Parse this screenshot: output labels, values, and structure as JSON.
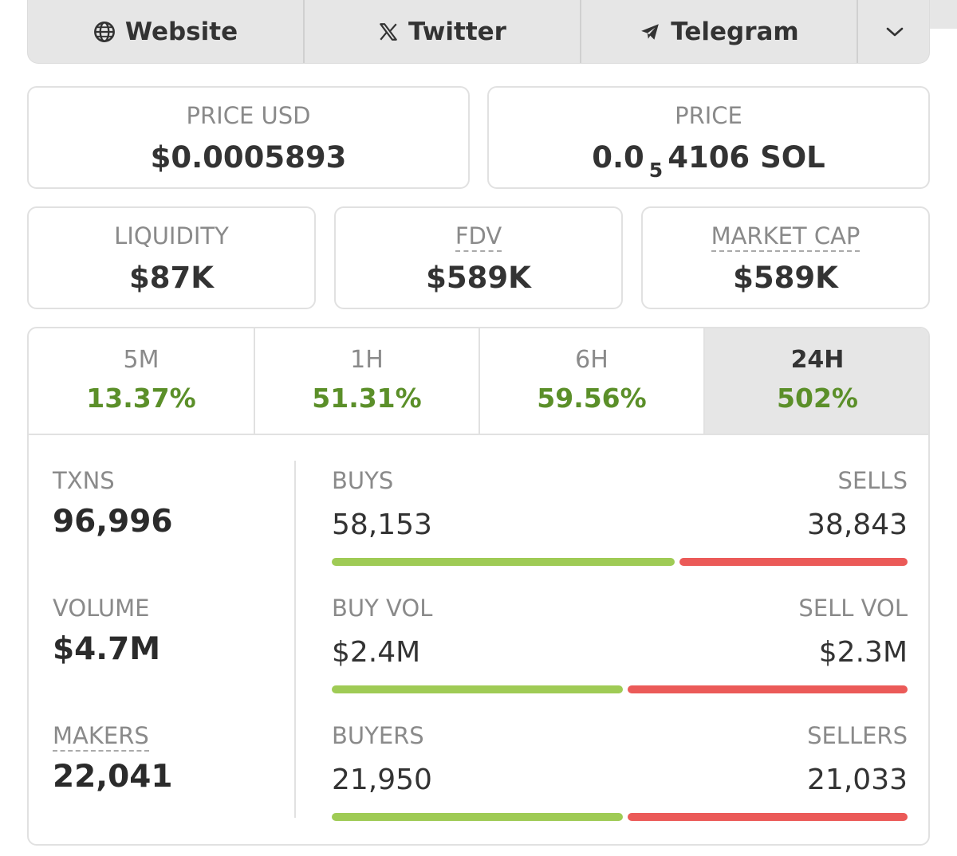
{
  "links": {
    "website": "Website",
    "twitter": "Twitter",
    "telegram": "Telegram"
  },
  "price_usd": {
    "label": "PRICE USD",
    "value": "$0.0005893"
  },
  "price_native": {
    "label": "PRICE",
    "prefix": "0.0",
    "zeros": "5",
    "suffix": "4106 SOL"
  },
  "liquidity": {
    "label": "LIQUIDITY",
    "value": "$87K"
  },
  "fdv": {
    "label": "FDV",
    "value": "$589K"
  },
  "market_cap": {
    "label": "MARKET CAP",
    "value": "$589K"
  },
  "tabs": [
    {
      "label": "5M",
      "change": "13.37%"
    },
    {
      "label": "1H",
      "change": "51.31%"
    },
    {
      "label": "6H",
      "change": "59.56%"
    },
    {
      "label": "24H",
      "change": "502%"
    }
  ],
  "active_tab": "24H",
  "metrics": {
    "txns": {
      "label": "TXNS",
      "value": "96,996"
    },
    "volume": {
      "label": "VOLUME",
      "value": "$4.7M"
    },
    "makers": {
      "label": "MAKERS",
      "value": "22,041"
    }
  },
  "pairs": {
    "txns": {
      "left_label": "BUYS",
      "left_value": "58,153",
      "right_label": "SELLS",
      "right_value": "38,843",
      "buy_fraction": 0.6
    },
    "volume": {
      "left_label": "BUY VOL",
      "left_value": "$2.4M",
      "right_label": "SELL VOL",
      "right_value": "$2.3M",
      "buy_fraction": 0.51
    },
    "makers": {
      "left_label": "BUYERS",
      "left_value": "21,950",
      "right_label": "SELLERS",
      "right_value": "21,033",
      "buy_fraction": 0.51
    }
  },
  "colors": {
    "positive": "#5b8f29",
    "buy_bar": "#9fcb55",
    "sell_bar": "#eb5a58"
  },
  "icons": [
    "globe-icon",
    "x-logo-icon",
    "telegram-icon",
    "chevron-down-icon"
  ]
}
